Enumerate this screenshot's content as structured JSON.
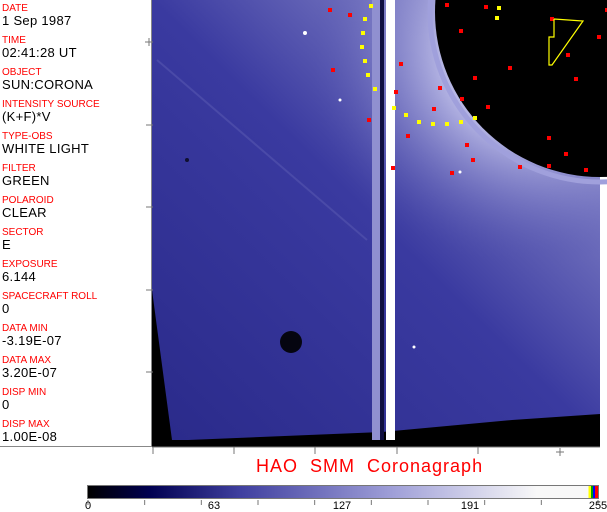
{
  "info_panel": {
    "fields": [
      {
        "label": "DATE",
        "value": "1 Sep 1987"
      },
      {
        "label": "TIME",
        "value": "02:41:28 UT"
      },
      {
        "label": "OBJECT",
        "value": "SUN:CORONA"
      },
      {
        "label": "INTENSITY SOURCE",
        "value": "(K+F)*V"
      },
      {
        "label": "TYPE-OBS",
        "value": "WHITE LIGHT"
      },
      {
        "label": "FILTER",
        "value": "GREEN"
      },
      {
        "label": "POLAROID",
        "value": "CLEAR"
      },
      {
        "label": "SECTOR",
        "value": "E"
      },
      {
        "label": "EXPOSURE",
        "value": "6.144"
      },
      {
        "label": "SPACECRAFT ROLL",
        "value": "0"
      },
      {
        "label": "DATA MIN",
        "value": "-3.19E-07"
      },
      {
        "label": "DATA MAX",
        "value": "3.20E-07"
      },
      {
        "label": "DISP MIN",
        "value": "0"
      },
      {
        "label": "DISP MAX",
        "value": "1.00E-08"
      }
    ]
  },
  "title": "HAO  SMM Coronagraph",
  "colorbar": {
    "ticks": [
      "0",
      "63",
      "127",
      "191",
      "255"
    ],
    "colors": [
      "#000000",
      "#000050",
      "#4040a0",
      "#a0a0d8",
      "#f8f8f8"
    ],
    "end_colors": [
      "#ffff00",
      "#00a000",
      "#0000ff",
      "#ff0000"
    ]
  },
  "image": {
    "background_color": "#000000",
    "corona_color": "#35359a",
    "marker_colors": {
      "red": "#ff0000",
      "yellow": "#ffff00"
    }
  }
}
